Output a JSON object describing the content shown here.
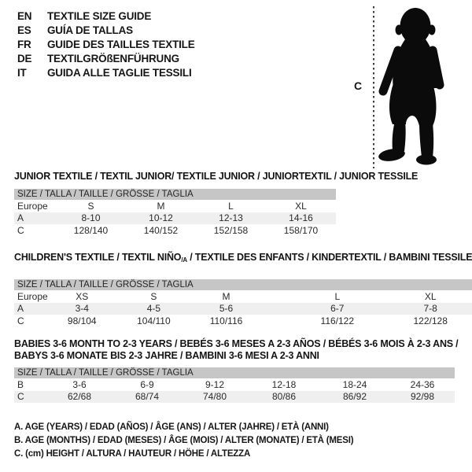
{
  "header": {
    "languages": [
      {
        "code": "EN",
        "label": "TEXTILE SIZE GUIDE"
      },
      {
        "code": "ES",
        "label": "GUÍA DE TALLAS"
      },
      {
        "code": "FR",
        "label": "GUIDE DES TAILLES TEXTILE"
      },
      {
        "code": "DE",
        "label": "TEXTILGRÖßENFÜHRUNG"
      },
      {
        "code": "IT",
        "label": "GUIDA ALLE TAGLIE TESSILI"
      }
    ]
  },
  "figure": {
    "measure_label": "C",
    "silhouette": "baby-silhouette"
  },
  "colors": {
    "header_bar": "#c6c6c6",
    "row_stripe": "#eeefee",
    "text": "#1c1c1c"
  },
  "tables": [
    {
      "title": "JUNIOR TEXTILE / TEXTIL JUNIOR/ TEXTILE JUNIOR / JUNIORTEXTIL / JUNIOR TESSILE",
      "size_header": "SIZE / TALLA / TAILLE / GRÖSSE / TAGLIA",
      "rows": [
        {
          "label": "Europe",
          "values": [
            "S",
            "M",
            "L",
            "XL"
          ]
        },
        {
          "label": "A",
          "values": [
            "8-10",
            "10-12",
            "12-13",
            "14-16"
          ]
        },
        {
          "label": "C",
          "values": [
            "128/140",
            "140/152",
            "152/158",
            "158/170"
          ]
        }
      ]
    },
    {
      "title_pre": "CHILDREN'S TEXTILE / TEXTIL NIÑO",
      "title_sub": "/A",
      "title_post": " / TEXTILE DES ENFANTS / KINDERTEXTIL / BAMBINI TESSILE",
      "size_header": "SIZE / TALLA / TAILLE / GRÖSSE / TAGLIA",
      "rows": [
        {
          "label": "Europe",
          "values": [
            "XS",
            "S",
            "M",
            "L",
            "XL"
          ]
        },
        {
          "label": "A",
          "values": [
            "3-4",
            "4-5",
            "5-6",
            "6-7",
            "7-8"
          ]
        },
        {
          "label": "C",
          "values": [
            "98/104",
            "104/110",
            "110/116",
            "116/122",
            "122/128"
          ]
        }
      ]
    },
    {
      "title_line1": "BABIES 3-6 MONTH TO 2-3 YEARS / BEBÉS 3-6 MESES A 2-3 AÑOS / BÉBÉS 3-6 MOIS À 2-3 ANS /",
      "title_line2": "BABYS 3-6 MONATE BIS 2-3 JAHRE / BAMBINI 3-6 MESI A 2-3 ANNI",
      "size_header": "SIZE / TALLA / TAILLE / GRÖSSE / TAGLIA",
      "rows": [
        {
          "label": "B",
          "values": [
            "3-6",
            "6-9",
            "9-12",
            "12-18",
            "18-24",
            "24-36"
          ]
        },
        {
          "label": "C",
          "values": [
            "62/68",
            "68/74",
            "74/80",
            "80/86",
            "86/92",
            "92/98"
          ]
        }
      ]
    }
  ],
  "footnotes": [
    "A. AGE (YEARS) / EDAD (AÑOS) / ÂGE (ANS) / ALTER (JAHRE) / ETÀ (ANNI)",
    "B. AGE (MONTHS) / EDAD (MESES) / ÂGE (MOIS) / ALTER (MONATE) / ETÀ (MESI)",
    "C. (cm) HEIGHT / ALTURA / HAUTEUR / HÖHE / ALTEZZA"
  ]
}
